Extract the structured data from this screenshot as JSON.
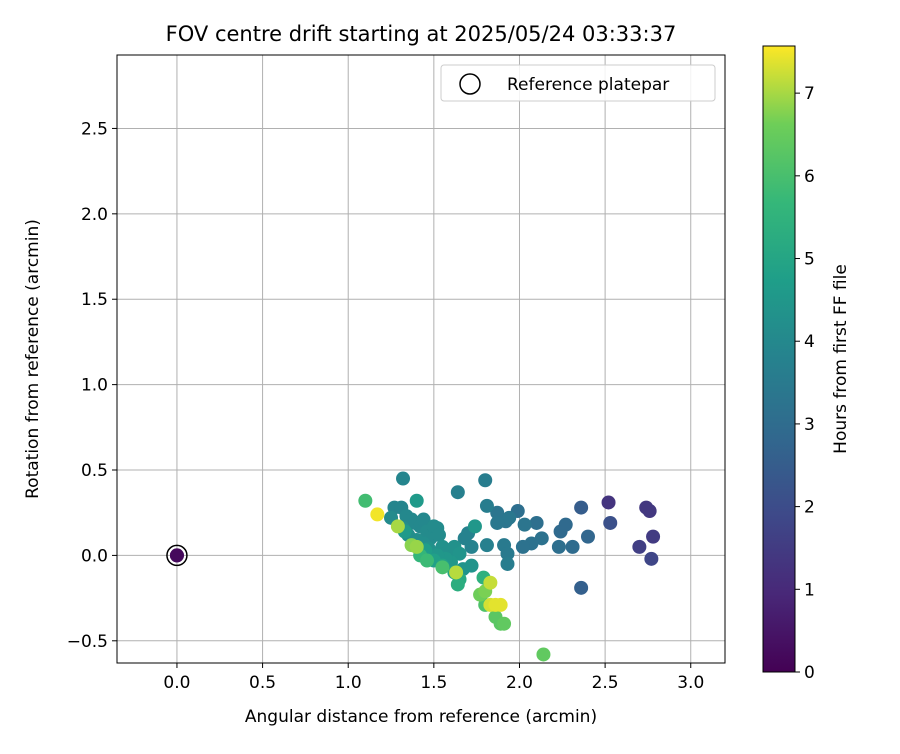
{
  "chart_data": {
    "type": "scatter",
    "title": "FOV centre drift starting at 2025/05/24 03:33:37",
    "xlabel": "Angular distance from reference (arcmin)",
    "ylabel": "Rotation from reference (arcmin)",
    "xlim": [
      -0.35,
      3.2
    ],
    "ylim": [
      -0.63,
      2.93
    ],
    "xticks": [
      0.0,
      0.5,
      1.0,
      1.5,
      2.0,
      2.5,
      3.0
    ],
    "xtick_labels": [
      "0.0",
      "0.5",
      "1.0",
      "1.5",
      "2.0",
      "2.5",
      "3.0"
    ],
    "yticks": [
      -0.5,
      0.0,
      0.5,
      1.0,
      1.5,
      2.0,
      2.5
    ],
    "ytick_labels": [
      "−0.5",
      "0.0",
      "0.5",
      "1.0",
      "1.5",
      "2.0",
      "2.5"
    ],
    "grid": true,
    "legend": {
      "placement": "top-right",
      "entries": [
        "Reference platepar"
      ]
    },
    "colorbar": {
      "label": "Hours from first FF file",
      "colormap": "viridis",
      "range": [
        0,
        7.57
      ],
      "ticks": [
        0,
        1,
        2,
        3,
        4,
        5,
        6,
        7
      ],
      "tick_labels": [
        "0",
        "1",
        "2",
        "3",
        "4",
        "5",
        "6",
        "7"
      ]
    },
    "reference_point": {
      "x": 0.0,
      "y": 0.0,
      "label": "Reference platepar",
      "hours": 0.2
    },
    "points": [
      {
        "x": 0.0,
        "y": 0.0,
        "hours": 0.5
      },
      {
        "x": 2.52,
        "y": 0.31,
        "hours": 1.3
      },
      {
        "x": 2.74,
        "y": 0.28,
        "hours": 1.4
      },
      {
        "x": 2.76,
        "y": 0.26,
        "hours": 1.4
      },
      {
        "x": 2.78,
        "y": 0.11,
        "hours": 1.5
      },
      {
        "x": 2.7,
        "y": 0.05,
        "hours": 1.6
      },
      {
        "x": 2.77,
        "y": -0.02,
        "hours": 1.8
      },
      {
        "x": 2.53,
        "y": 0.19,
        "hours": 2.1
      },
      {
        "x": 2.36,
        "y": 0.28,
        "hours": 2.5
      },
      {
        "x": 2.36,
        "y": -0.19,
        "hours": 2.6
      },
      {
        "x": 2.4,
        "y": 0.11,
        "hours": 2.8
      },
      {
        "x": 2.27,
        "y": 0.18,
        "hours": 2.9
      },
      {
        "x": 2.24,
        "y": 0.14,
        "hours": 2.9
      },
      {
        "x": 2.31,
        "y": 0.05,
        "hours": 3.0
      },
      {
        "x": 2.23,
        "y": 0.05,
        "hours": 3.1
      },
      {
        "x": 1.99,
        "y": 0.26,
        "hours": 3.1
      },
      {
        "x": 2.1,
        "y": 0.19,
        "hours": 3.1
      },
      {
        "x": 2.13,
        "y": 0.1,
        "hours": 3.2
      },
      {
        "x": 2.07,
        "y": 0.07,
        "hours": 3.2
      },
      {
        "x": 2.02,
        "y": 0.05,
        "hours": 3.2
      },
      {
        "x": 2.03,
        "y": 0.18,
        "hours": 3.3
      },
      {
        "x": 1.92,
        "y": 0.2,
        "hours": 3.3
      },
      {
        "x": 1.87,
        "y": 0.25,
        "hours": 3.3
      },
      {
        "x": 1.94,
        "y": 0.22,
        "hours": 3.4
      },
      {
        "x": 1.87,
        "y": 0.19,
        "hours": 3.4
      },
      {
        "x": 1.91,
        "y": 0.06,
        "hours": 3.5
      },
      {
        "x": 1.93,
        "y": 0.01,
        "hours": 3.5
      },
      {
        "x": 1.93,
        "y": -0.05,
        "hours": 3.6
      },
      {
        "x": 1.8,
        "y": 0.44,
        "hours": 3.6
      },
      {
        "x": 1.81,
        "y": 0.29,
        "hours": 3.6
      },
      {
        "x": 1.81,
        "y": 0.06,
        "hours": 3.7
      },
      {
        "x": 1.64,
        "y": 0.37,
        "hours": 3.7
      },
      {
        "x": 1.7,
        "y": 0.13,
        "hours": 3.8
      },
      {
        "x": 1.68,
        "y": 0.1,
        "hours": 3.8
      },
      {
        "x": 1.72,
        "y": 0.05,
        "hours": 3.8
      },
      {
        "x": 1.32,
        "y": 0.45,
        "hours": 3.9
      },
      {
        "x": 1.27,
        "y": 0.28,
        "hours": 3.9
      },
      {
        "x": 1.31,
        "y": 0.28,
        "hours": 3.9
      },
      {
        "x": 1.34,
        "y": 0.23,
        "hours": 4.0
      },
      {
        "x": 1.37,
        "y": 0.21,
        "hours": 4.0
      },
      {
        "x": 1.39,
        "y": 0.19,
        "hours": 4.0
      },
      {
        "x": 1.42,
        "y": 0.17,
        "hours": 4.0
      },
      {
        "x": 1.44,
        "y": 0.21,
        "hours": 4.0
      },
      {
        "x": 1.46,
        "y": 0.14,
        "hours": 4.1
      },
      {
        "x": 1.48,
        "y": 0.1,
        "hours": 4.1
      },
      {
        "x": 1.5,
        "y": 0.17,
        "hours": 4.1
      },
      {
        "x": 1.52,
        "y": 0.16,
        "hours": 4.1
      },
      {
        "x": 1.53,
        "y": 0.12,
        "hours": 4.1
      },
      {
        "x": 1.25,
        "y": 0.22,
        "hours": 4.1
      },
      {
        "x": 1.32,
        "y": 0.16,
        "hours": 4.2
      },
      {
        "x": 1.35,
        "y": 0.12,
        "hours": 4.2
      },
      {
        "x": 1.4,
        "y": 0.09,
        "hours": 4.2
      },
      {
        "x": 1.44,
        "y": 0.07,
        "hours": 4.2
      },
      {
        "x": 1.47,
        "y": 0.04,
        "hours": 4.3
      },
      {
        "x": 1.55,
        "y": 0.05,
        "hours": 4.3
      },
      {
        "x": 1.58,
        "y": 0.02,
        "hours": 4.3
      },
      {
        "x": 1.62,
        "y": 0.05,
        "hours": 4.3
      },
      {
        "x": 1.65,
        "y": 0.01,
        "hours": 4.4
      },
      {
        "x": 1.72,
        "y": -0.06,
        "hours": 4.4
      },
      {
        "x": 1.67,
        "y": -0.08,
        "hours": 4.4
      },
      {
        "x": 1.6,
        "y": -0.04,
        "hours": 4.5
      },
      {
        "x": 1.57,
        "y": -0.02,
        "hours": 4.5
      },
      {
        "x": 1.52,
        "y": 0.0,
        "hours": 4.5
      },
      {
        "x": 1.74,
        "y": 0.17,
        "hours": 4.5
      },
      {
        "x": 1.4,
        "y": 0.32,
        "hours": 4.6
      },
      {
        "x": 1.33,
        "y": 0.14,
        "hours": 4.6
      },
      {
        "x": 1.45,
        "y": 0.03,
        "hours": 4.7
      },
      {
        "x": 1.5,
        "y": -0.03,
        "hours": 4.8
      },
      {
        "x": 1.55,
        "y": -0.06,
        "hours": 4.9
      },
      {
        "x": 1.62,
        "y": -0.1,
        "hours": 5.0
      },
      {
        "x": 1.65,
        "y": -0.14,
        "hours": 5.2
      },
      {
        "x": 1.64,
        "y": -0.17,
        "hours": 5.3
      },
      {
        "x": 1.79,
        "y": -0.13,
        "hours": 5.4
      },
      {
        "x": 1.42,
        "y": 0.0,
        "hours": 5.6
      },
      {
        "x": 1.46,
        "y": -0.03,
        "hours": 5.8
      },
      {
        "x": 1.1,
        "y": 0.32,
        "hours": 5.9
      },
      {
        "x": 1.55,
        "y": -0.07,
        "hours": 6.0
      },
      {
        "x": 1.8,
        "y": -0.29,
        "hours": 6.1
      },
      {
        "x": 1.86,
        "y": -0.36,
        "hours": 6.3
      },
      {
        "x": 1.89,
        "y": -0.4,
        "hours": 6.3
      },
      {
        "x": 1.91,
        "y": -0.4,
        "hours": 6.4
      },
      {
        "x": 2.14,
        "y": -0.58,
        "hours": 6.4
      },
      {
        "x": 1.77,
        "y": -0.23,
        "hours": 6.6
      },
      {
        "x": 1.8,
        "y": -0.21,
        "hours": 6.7
      },
      {
        "x": 1.37,
        "y": 0.06,
        "hours": 6.8
      },
      {
        "x": 1.4,
        "y": 0.05,
        "hours": 6.9
      },
      {
        "x": 1.29,
        "y": 0.17,
        "hours": 7.0
      },
      {
        "x": 1.63,
        "y": -0.1,
        "hours": 7.1
      },
      {
        "x": 1.83,
        "y": -0.16,
        "hours": 7.2
      },
      {
        "x": 1.83,
        "y": -0.29,
        "hours": 7.3
      },
      {
        "x": 1.86,
        "y": -0.29,
        "hours": 7.4
      },
      {
        "x": 1.89,
        "y": -0.29,
        "hours": 7.4
      },
      {
        "x": 1.17,
        "y": 0.24,
        "hours": 7.5
      }
    ]
  }
}
